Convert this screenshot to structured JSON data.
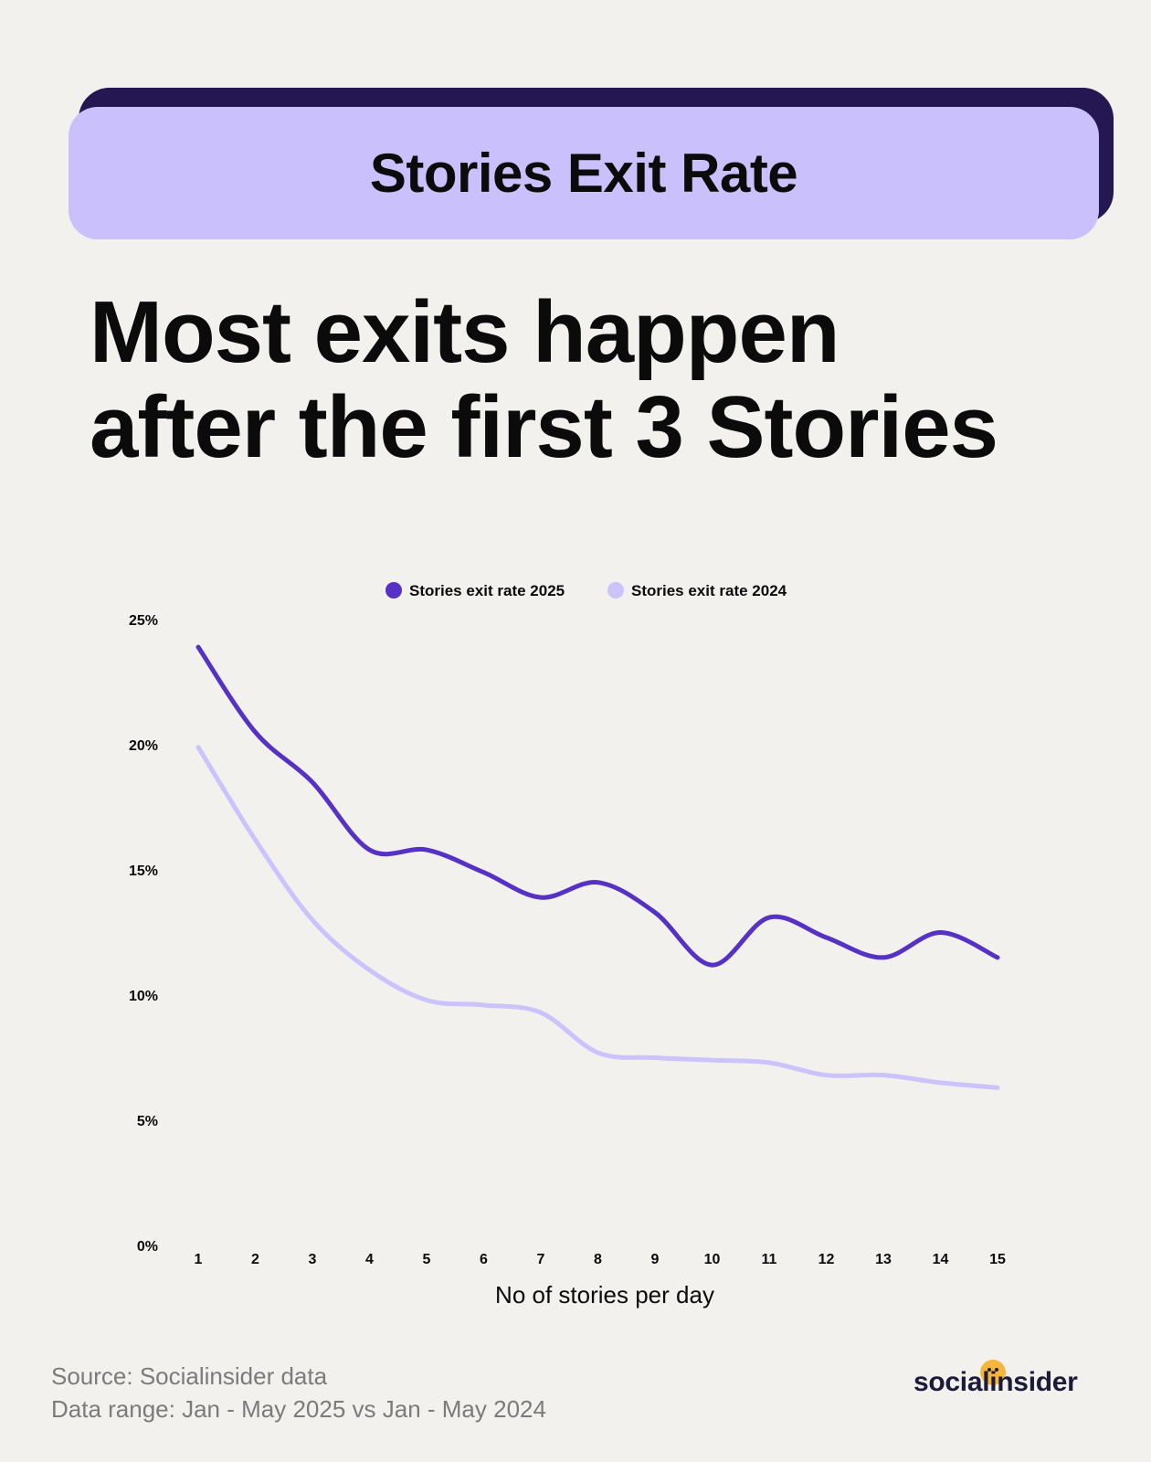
{
  "header": {
    "banner_title": "Stories Exit Rate",
    "headline_line1": "Most exits happen",
    "headline_line2": "after the first 3 Stories"
  },
  "chart_data": {
    "type": "line",
    "xlabel": "No of stories per day",
    "ylabel": "",
    "x": [
      1,
      2,
      3,
      4,
      5,
      6,
      7,
      8,
      9,
      10,
      11,
      12,
      13,
      14,
      15
    ],
    "y_ticks": [
      "0%",
      "5%",
      "10%",
      "15%",
      "20%",
      "25%"
    ],
    "ylim": [
      0,
      25
    ],
    "grid": false,
    "legend_position": "top-center",
    "series": [
      {
        "name": "Stories exit rate 2025",
        "color": "#5532c4",
        "values": [
          23.9,
          20.5,
          18.5,
          15.8,
          15.8,
          14.9,
          13.9,
          14.5,
          13.3,
          11.2,
          13.1,
          12.3,
          11.5,
          12.5,
          11.5
        ]
      },
      {
        "name": "Stories exit rate 2024",
        "color": "#cbc3fc",
        "values": [
          19.9,
          16.2,
          13.0,
          11.0,
          9.8,
          9.6,
          9.3,
          7.7,
          7.5,
          7.4,
          7.3,
          6.8,
          6.8,
          6.5,
          6.3
        ]
      }
    ]
  },
  "footer": {
    "source": "Source: Socialinsider data",
    "range": "Data range: Jan - May 2025 vs Jan - May 2024"
  },
  "brand": {
    "logo_text": "socialinsider",
    "accent_color": "#f6b63d"
  }
}
